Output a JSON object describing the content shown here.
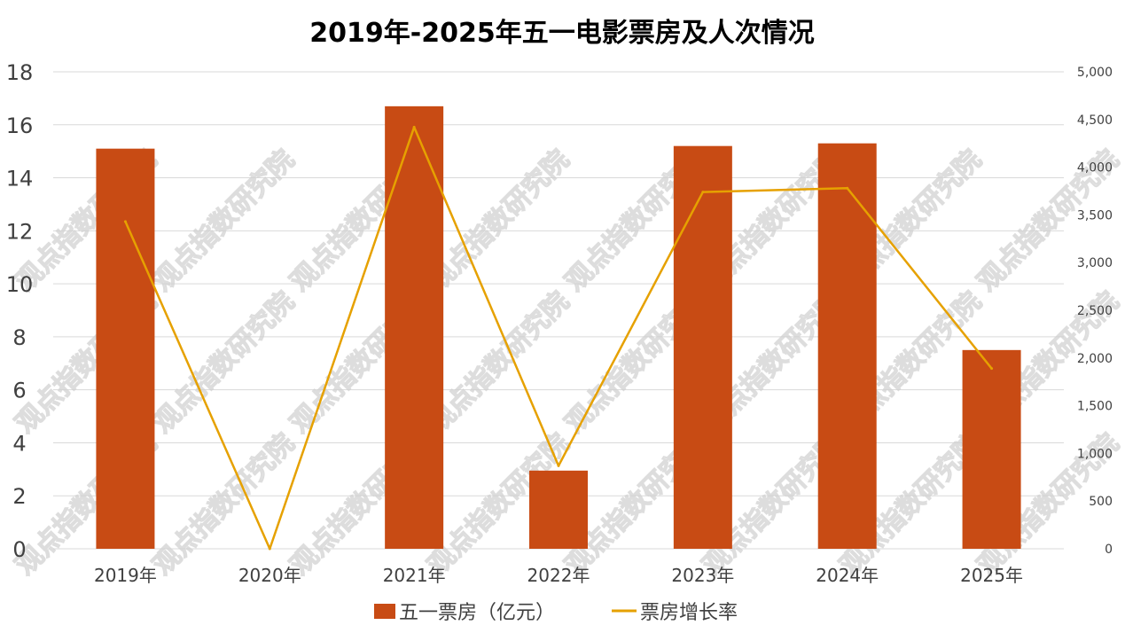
{
  "chart_data": {
    "type": "bar",
    "title": "2019年-2025年五一电影票房及人次情况",
    "categories": [
      "2019年",
      "2020年",
      "2021年",
      "2022年",
      "2023年",
      "2024年",
      "2025年"
    ],
    "series": [
      {
        "name": "五一票房（亿元）",
        "type": "bar",
        "axis": "left",
        "color": "#C84B14",
        "values": [
          15.1,
          0,
          16.7,
          2.95,
          15.2,
          15.3,
          7.5
        ]
      },
      {
        "name": "票房增长率",
        "type": "line",
        "axis": "right",
        "color": "#E6A100",
        "values": [
          3430,
          0,
          4420,
          870,
          3740,
          3780,
          1890
        ]
      }
    ],
    "y_left": {
      "min": 0,
      "max": 18,
      "ticks": [
        "0",
        "2",
        "4",
        "6",
        "8",
        "10",
        "12",
        "14",
        "16",
        "18"
      ]
    },
    "y_right": {
      "min": 0,
      "max": 5000,
      "ticks": [
        "0",
        "500",
        "1,000",
        "1,500",
        "2,000",
        "2,500",
        "3,000",
        "3,500",
        "4,000",
        "4,500",
        "5,000"
      ]
    },
    "grid": true,
    "legend_position": "bottom",
    "watermark": "观点指数研究院"
  }
}
